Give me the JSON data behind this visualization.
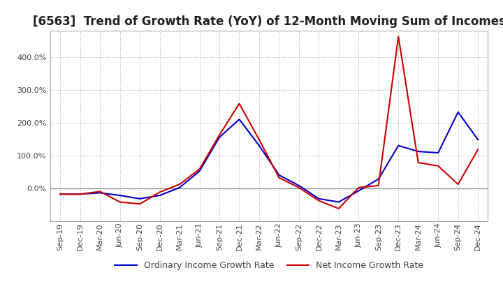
{
  "title": "[6563]  Trend of Growth Rate (YoY) of 12-Month Moving Sum of Incomes",
  "x_labels": [
    "Sep-19",
    "Dec-19",
    "Mar-20",
    "Jun-20",
    "Sep-20",
    "Dec-20",
    "Mar-21",
    "Jun-21",
    "Sep-21",
    "Dec-21",
    "Mar-22",
    "Jun-22",
    "Sep-22",
    "Dec-22",
    "Mar-23",
    "Jun-23",
    "Sep-23",
    "Dec-23",
    "Mar-24",
    "Jun-24",
    "Sep-24",
    "Dec-24"
  ],
  "ordinary_y": [
    -18,
    -18,
    -14,
    -22,
    -32,
    -22,
    2,
    52,
    155,
    210,
    130,
    40,
    8,
    -32,
    -42,
    -8,
    28,
    130,
    112,
    108,
    232,
    148
  ],
  "net_y": [
    -18,
    -18,
    -10,
    -42,
    -48,
    -12,
    12,
    58,
    162,
    258,
    148,
    32,
    2,
    -38,
    -62,
    2,
    8,
    462,
    78,
    68,
    12,
    118
  ],
  "ordinary_color": "#0000CC",
  "net_color": "#CC0000",
  "ordinary_label": "Ordinary Income Growth Rate",
  "net_label": "Net Income Growth Rate",
  "ylim_min": -100,
  "ylim_max": 480,
  "ytick_vals": [
    0,
    100,
    200,
    300,
    400
  ],
  "background_color": "#FFFFFF",
  "grid_color": "#AAAAAA",
  "title_fontsize": 12,
  "legend_fontsize": 9,
  "tick_fontsize": 8,
  "line_width": 1.5
}
